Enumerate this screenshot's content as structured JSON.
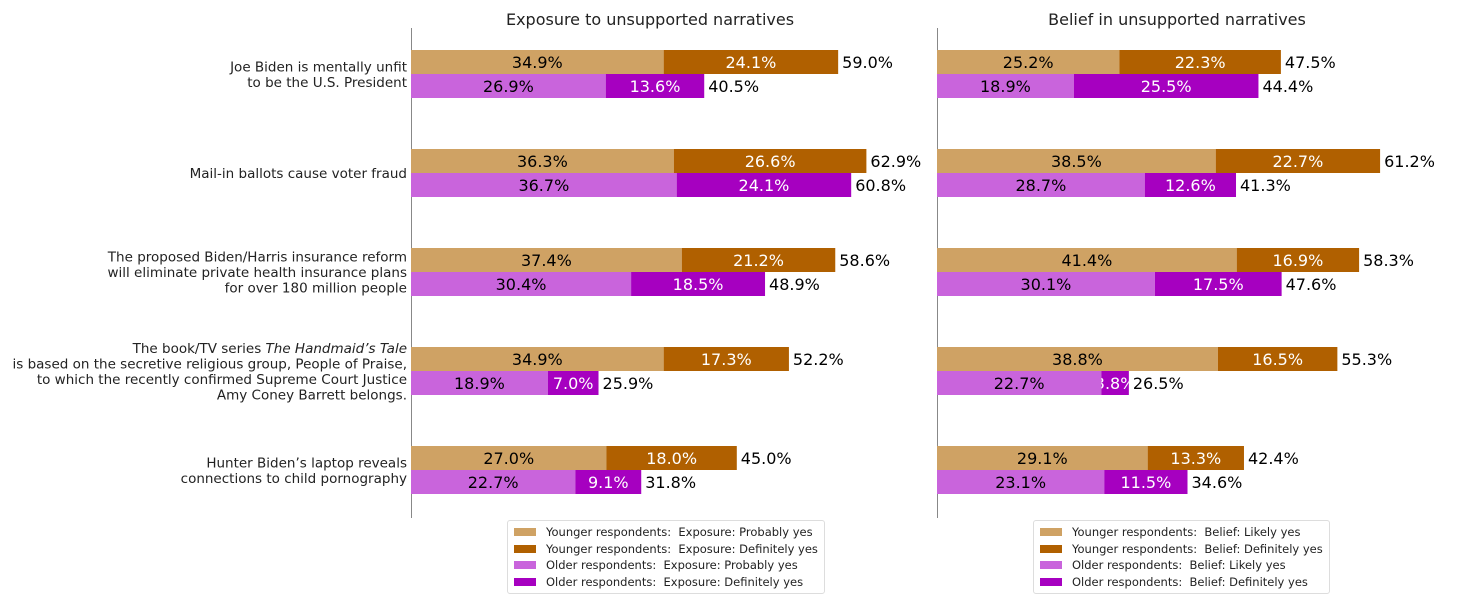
{
  "chart_data": [
    {
      "type": "bar",
      "orientation": "horizontal",
      "stacked": true,
      "title": "Exposure to unsupported narratives",
      "series": [
        {
          "name": "Younger respondents:  Exposure: Probably yes",
          "color": "#cfa264",
          "text_color": "#000000",
          "values": [
            34.9,
            36.3,
            37.4,
            34.9,
            27.0
          ]
        },
        {
          "name": "Younger respondents:  Exposure: Definitely yes",
          "color": "#b06000",
          "text_color": "#ffffff",
          "values": [
            24.1,
            26.6,
            21.2,
            17.3,
            18.0
          ]
        },
        {
          "name": "Older respondents:  Exposure: Probably yes",
          "color": "#c964dc",
          "text_color": "#000000",
          "values": [
            26.9,
            36.7,
            30.4,
            18.9,
            22.7
          ]
        },
        {
          "name": "Older respondents:  Exposure: Definitely yes",
          "color": "#a600c0",
          "text_color": "#ffffff",
          "values": [
            13.6,
            24.1,
            18.5,
            7.0,
            9.1
          ]
        }
      ],
      "totals_younger": [
        "59.0%",
        "62.9%",
        "58.6%",
        "52.2%",
        "45.0%"
      ],
      "totals_older": [
        "40.5%",
        "60.8%",
        "48.9%",
        "25.9%",
        "31.8%"
      ],
      "legend_position": "bottom"
    },
    {
      "type": "bar",
      "orientation": "horizontal",
      "stacked": true,
      "title": "Belief in unsupported narratives",
      "series": [
        {
          "name": "Younger respondents:  Belief: Likely yes",
          "color": "#cfa264",
          "text_color": "#000000",
          "values": [
            25.2,
            38.5,
            41.4,
            38.8,
            29.1
          ]
        },
        {
          "name": "Younger respondents:  Belief: Definitely yes",
          "color": "#b06000",
          "text_color": "#ffffff",
          "values": [
            22.3,
            22.7,
            16.9,
            16.5,
            13.3
          ]
        },
        {
          "name": "Older respondents:  Belief: Likely yes",
          "color": "#c964dc",
          "text_color": "#000000",
          "values": [
            18.9,
            28.7,
            30.1,
            22.7,
            23.1
          ]
        },
        {
          "name": "Older respondents:  Belief: Definitely yes",
          "color": "#a600c0",
          "text_color": "#ffffff",
          "values": [
            25.5,
            12.6,
            17.5,
            3.8,
            11.5
          ]
        }
      ],
      "totals_younger": [
        "47.5%",
        "61.2%",
        "58.3%",
        "55.3%",
        "42.4%"
      ],
      "totals_older": [
        "44.4%",
        "41.3%",
        "47.6%",
        "26.5%",
        "34.6%"
      ],
      "legend_position": "bottom"
    }
  ],
  "categories": [
    [
      [
        {
          "t": "Joe Biden is mentally unfit"
        }
      ],
      [
        {
          "t": "to be the U.S. President"
        }
      ]
    ],
    [
      [
        {
          "t": "Mail-in ballots cause voter fraud"
        }
      ]
    ],
    [
      [
        {
          "t": "The proposed Biden/Harris insurance reform"
        }
      ],
      [
        {
          "t": "will eliminate private health insurance plans"
        }
      ],
      [
        {
          "t": "for over 180 million people"
        }
      ]
    ],
    [
      [
        {
          "t": "The book/TV series "
        },
        {
          "t": "The Handmaid’s Tale",
          "i": true
        }
      ],
      [
        {
          "t": "is based on the secretive religious group, People of Praise,"
        }
      ],
      [
        {
          "t": "to which the recently confirmed Supreme Court Justice"
        }
      ],
      [
        {
          "t": "Amy Coney Barrett belongs."
        }
      ]
    ],
    [
      [
        {
          "t": "Hunter Biden’s laptop reveals"
        }
      ],
      [
        {
          "t": "connections to child pornography"
        }
      ]
    ]
  ]
}
